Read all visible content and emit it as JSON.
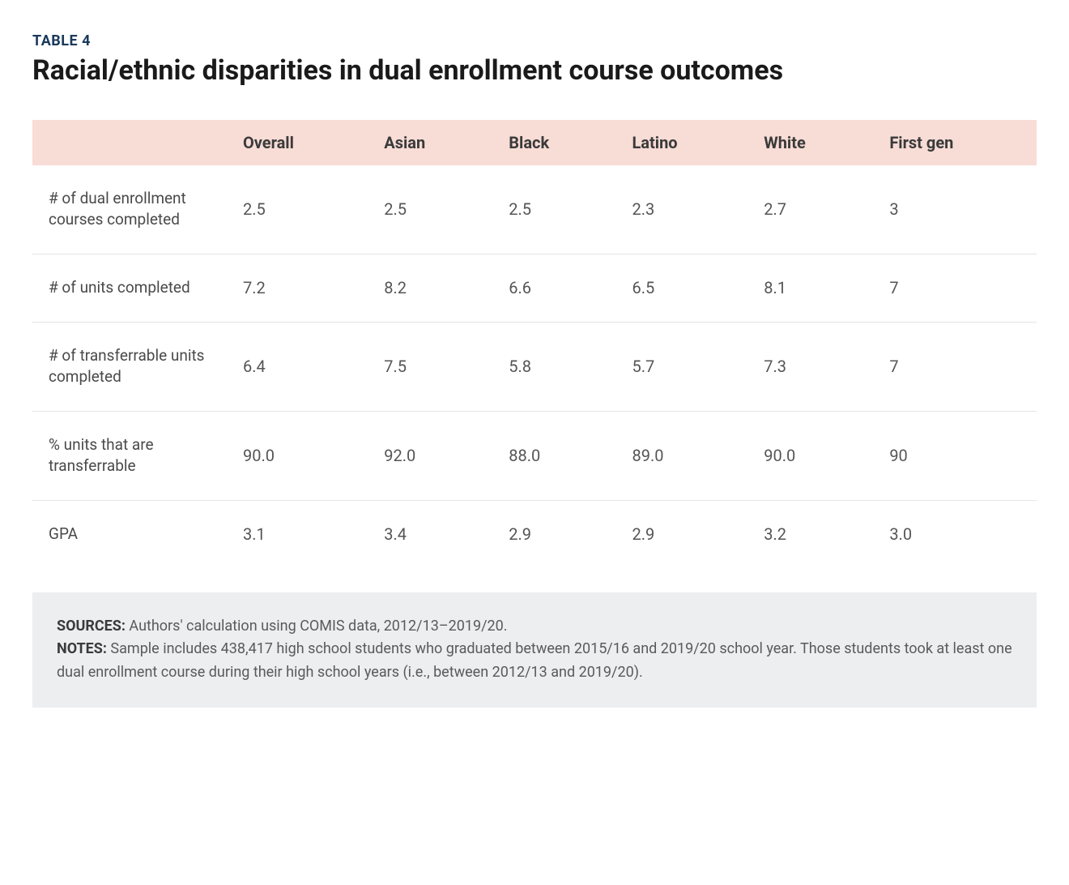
{
  "header": {
    "table_label": "TABLE 4",
    "title": "Racial/ethnic disparities in dual enrollment course outcomes"
  },
  "table": {
    "type": "table",
    "header_bg_color": "#f8dcd6",
    "border_color": "#e5e5e5",
    "footer_bg_color": "#eceef0",
    "columns": [
      "",
      "Overall",
      "Asian",
      "Black",
      "Latino",
      "White",
      "First gen"
    ],
    "rows": [
      {
        "label": "# of dual enrollment courses completed",
        "values": [
          "2.5",
          "2.5",
          "2.5",
          "2.3",
          "2.7",
          "3"
        ]
      },
      {
        "label": "# of units completed",
        "values": [
          "7.2",
          "8.2",
          "6.6",
          "6.5",
          "8.1",
          "7"
        ]
      },
      {
        "label": "# of transferrable units completed",
        "values": [
          "6.4",
          "7.5",
          "5.8",
          "5.7",
          "7.3",
          "7"
        ]
      },
      {
        "label": "% units that are transferrable",
        "values": [
          "90.0",
          "92.0",
          "88.0",
          "89.0",
          "90.0",
          "90"
        ]
      },
      {
        "label": "GPA",
        "values": [
          "3.1",
          "3.4",
          "2.9",
          "2.9",
          "3.2",
          "3.0"
        ]
      }
    ]
  },
  "footer": {
    "sources_label": "SOURCES:",
    "sources_text": " Authors' calculation using COMIS data, 2012/13–2019/20.",
    "notes_label": "NOTES:",
    "notes_text": " Sample includes 438,417 high school students who graduated between 2015/16 and 2019/20 school year. Those students took at least one dual enrollment course during their high school years (i.e., between 2012/13 and 2019/20)."
  }
}
